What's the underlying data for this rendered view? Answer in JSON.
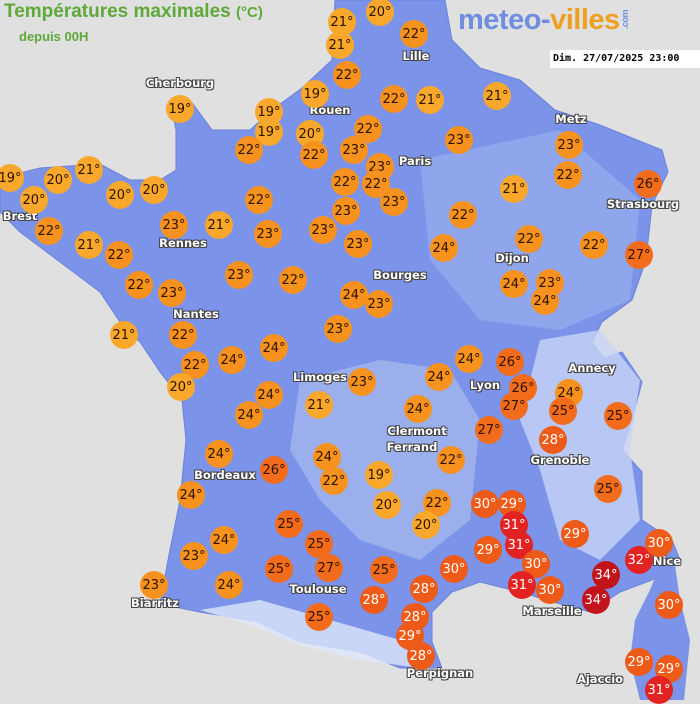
{
  "header": {
    "title": "Températures maximales",
    "unit": "(°C)",
    "subtitle": "depuis 00H",
    "logo_part1": "meteo-",
    "logo_part2": "villes",
    "logo_suffix": ".com",
    "datetime": "Dim. 27/07/2025 23:00"
  },
  "colors": {
    "background": "#e0e0e0",
    "land": "#7b93e8",
    "title": "#5fa83a",
    "temp_19_21": "#f9a82c",
    "temp_22_24": "#f7921e",
    "temp_25_27": "#f26c1c",
    "temp_28_30": "#ee5a18",
    "temp_31_32": "#e32222",
    "temp_34": "#c2141a"
  },
  "cities": [
    "Cherbourg",
    "Lille",
    "Rouen",
    "Paris",
    "Metz",
    "Strasbourg",
    "Brest",
    "Rennes",
    "Dijon",
    "Bourges",
    "Nantes",
    "Limoges",
    "Annecy",
    "Lyon",
    "Clermont",
    "Ferrand",
    "Grenoble",
    "Bordeaux",
    "Toulouse",
    "Biarritz",
    "Marseille",
    "Nice",
    "Perpignan",
    "Ajaccio"
  ],
  "temperatures": [
    21,
    20,
    21,
    22,
    22,
    19,
    19,
    19,
    19,
    20,
    22,
    22,
    22,
    21,
    21,
    22,
    23,
    23,
    23,
    23,
    22,
    26,
    19,
    20,
    20,
    21,
    20,
    20,
    22,
    21,
    22,
    23,
    21,
    22,
    23,
    23,
    22,
    22,
    23,
    23,
    23,
    22,
    21,
    22,
    22,
    27,
    24,
    24,
    23,
    24,
    22,
    23,
    23,
    22,
    24,
    23,
    23,
    21,
    22,
    22,
    20,
    24,
    24,
    24,
    24,
    21,
    23,
    24,
    24,
    26,
    26,
    27,
    24,
    25,
    25,
    24,
    27,
    28,
    22,
    19,
    24,
    26,
    24,
    22,
    24,
    25,
    24,
    23,
    25,
    25,
    27,
    24,
    23,
    25,
    25,
    28,
    28,
    28,
    29,
    28,
    30,
    20,
    22,
    20,
    30,
    29,
    31,
    31,
    29,
    30,
    31,
    30,
    29,
    25,
    34,
    34,
    32,
    30,
    30,
    29,
    29,
    31
  ]
}
